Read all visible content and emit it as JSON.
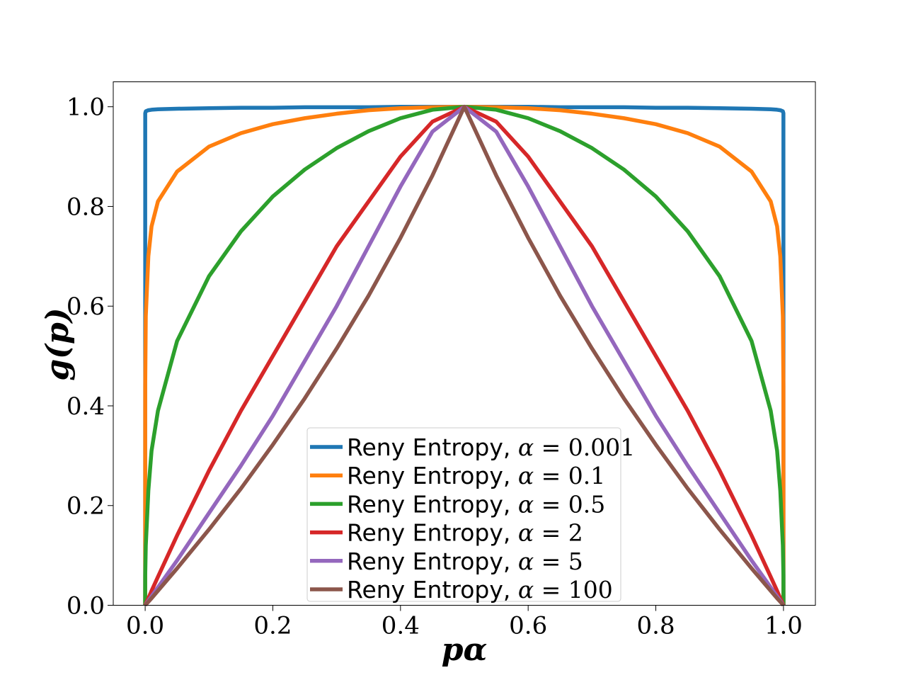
{
  "chart_data": {
    "type": "line",
    "title": "",
    "xlabel": "pα",
    "ylabel": "g(p)",
    "xlim": [
      -0.05,
      1.05
    ],
    "ylim": [
      0.0,
      1.05
    ],
    "x_ticks": [
      0.0,
      0.2,
      0.4,
      0.6,
      0.8,
      1.0
    ],
    "y_ticks": [
      0.0,
      0.2,
      0.4,
      0.6,
      0.8,
      1.0
    ],
    "x_tick_labels": [
      "0.0",
      "0.2",
      "0.4",
      "0.6",
      "0.8",
      "1.0"
    ],
    "y_tick_labels": [
      "0.0",
      "0.2",
      "0.4",
      "0.6",
      "0.8",
      "1.0"
    ],
    "grid": false,
    "legend_position": "bottom-center",
    "x": [
      0.0,
      0.0001,
      0.001,
      0.005,
      0.01,
      0.02,
      0.05,
      0.1,
      0.15,
      0.2,
      0.25,
      0.3,
      0.35,
      0.4,
      0.45,
      0.5,
      0.55,
      0.6,
      0.65,
      0.7,
      0.75,
      0.8,
      0.85,
      0.9,
      0.95,
      0.98,
      0.99,
      0.995,
      0.999,
      0.9999,
      1.0
    ],
    "series": [
      {
        "name": "Reny Entropy, α = 0.001",
        "label_text": "Reny Entropy, ",
        "label_symbol": "α",
        "label_value": "= 0.001",
        "color": "#1f77b4",
        "values": [
          0.0,
          0.987,
          0.991,
          0.993,
          0.994,
          0.995,
          0.996,
          0.997,
          0.998,
          0.998,
          0.999,
          0.999,
          0.999,
          1.0,
          1.0,
          1.0,
          1.0,
          1.0,
          0.999,
          0.999,
          0.999,
          0.998,
          0.998,
          0.997,
          0.996,
          0.995,
          0.994,
          0.993,
          0.991,
          0.987,
          0.0
        ]
      },
      {
        "name": "Reny Entropy, α = 0.1",
        "label_text": "Reny Entropy, ",
        "label_symbol": "α",
        "label_value": "= 0.1",
        "color": "#ff7f0e",
        "values": [
          0.0,
          0.44,
          0.58,
          0.7,
          0.76,
          0.81,
          0.87,
          0.92,
          0.947,
          0.965,
          0.977,
          0.986,
          0.993,
          0.997,
          0.999,
          1.0,
          0.999,
          0.997,
          0.993,
          0.986,
          0.977,
          0.965,
          0.947,
          0.92,
          0.87,
          0.81,
          0.76,
          0.7,
          0.58,
          0.44,
          0.0
        ]
      },
      {
        "name": "Reny Entropy, α = 0.5",
        "label_text": "Reny Entropy, ",
        "label_symbol": "α",
        "label_value": "= 0.5",
        "color": "#2ca02c",
        "values": [
          0.0,
          0.06,
          0.12,
          0.23,
          0.31,
          0.39,
          0.53,
          0.66,
          0.75,
          0.82,
          0.874,
          0.917,
          0.951,
          0.977,
          0.994,
          1.0,
          0.994,
          0.977,
          0.951,
          0.917,
          0.874,
          0.82,
          0.75,
          0.66,
          0.53,
          0.39,
          0.31,
          0.23,
          0.12,
          0.06,
          0.0
        ]
      },
      {
        "name": "Reny Entropy, α = 2",
        "label_text": "Reny Entropy, ",
        "label_symbol": "α",
        "label_value": "= 2",
        "color": "#d62728",
        "values": [
          0.0,
          0.0003,
          0.003,
          0.014,
          0.029,
          0.057,
          0.14,
          0.27,
          0.39,
          0.5,
          0.61,
          0.72,
          0.81,
          0.9,
          0.97,
          1.0,
          0.97,
          0.9,
          0.81,
          0.72,
          0.61,
          0.5,
          0.39,
          0.27,
          0.14,
          0.057,
          0.029,
          0.014,
          0.003,
          0.0003,
          0.0
        ]
      },
      {
        "name": "Reny Entropy, α = 5",
        "label_text": "Reny Entropy, ",
        "label_symbol": "α",
        "label_value": "= 5",
        "color": "#9467bd",
        "values": [
          0.0,
          0.0002,
          0.002,
          0.009,
          0.018,
          0.036,
          0.09,
          0.185,
          0.28,
          0.38,
          0.49,
          0.6,
          0.72,
          0.84,
          0.95,
          1.0,
          0.95,
          0.84,
          0.72,
          0.6,
          0.49,
          0.38,
          0.28,
          0.185,
          0.09,
          0.036,
          0.018,
          0.009,
          0.002,
          0.0002,
          0.0
        ]
      },
      {
        "name": "Reny Entropy, α = 100",
        "label_text": "Reny Entropy, ",
        "label_symbol": "α",
        "label_value": "= 100",
        "color": "#8c564b",
        "values": [
          0.0,
          0.0002,
          0.0015,
          0.007,
          0.014,
          0.029,
          0.074,
          0.152,
          0.234,
          0.322,
          0.415,
          0.515,
          0.621,
          0.737,
          0.862,
          1.0,
          0.862,
          0.737,
          0.621,
          0.515,
          0.415,
          0.322,
          0.234,
          0.152,
          0.074,
          0.029,
          0.014,
          0.007,
          0.0015,
          0.0002,
          0.0
        ]
      }
    ]
  }
}
